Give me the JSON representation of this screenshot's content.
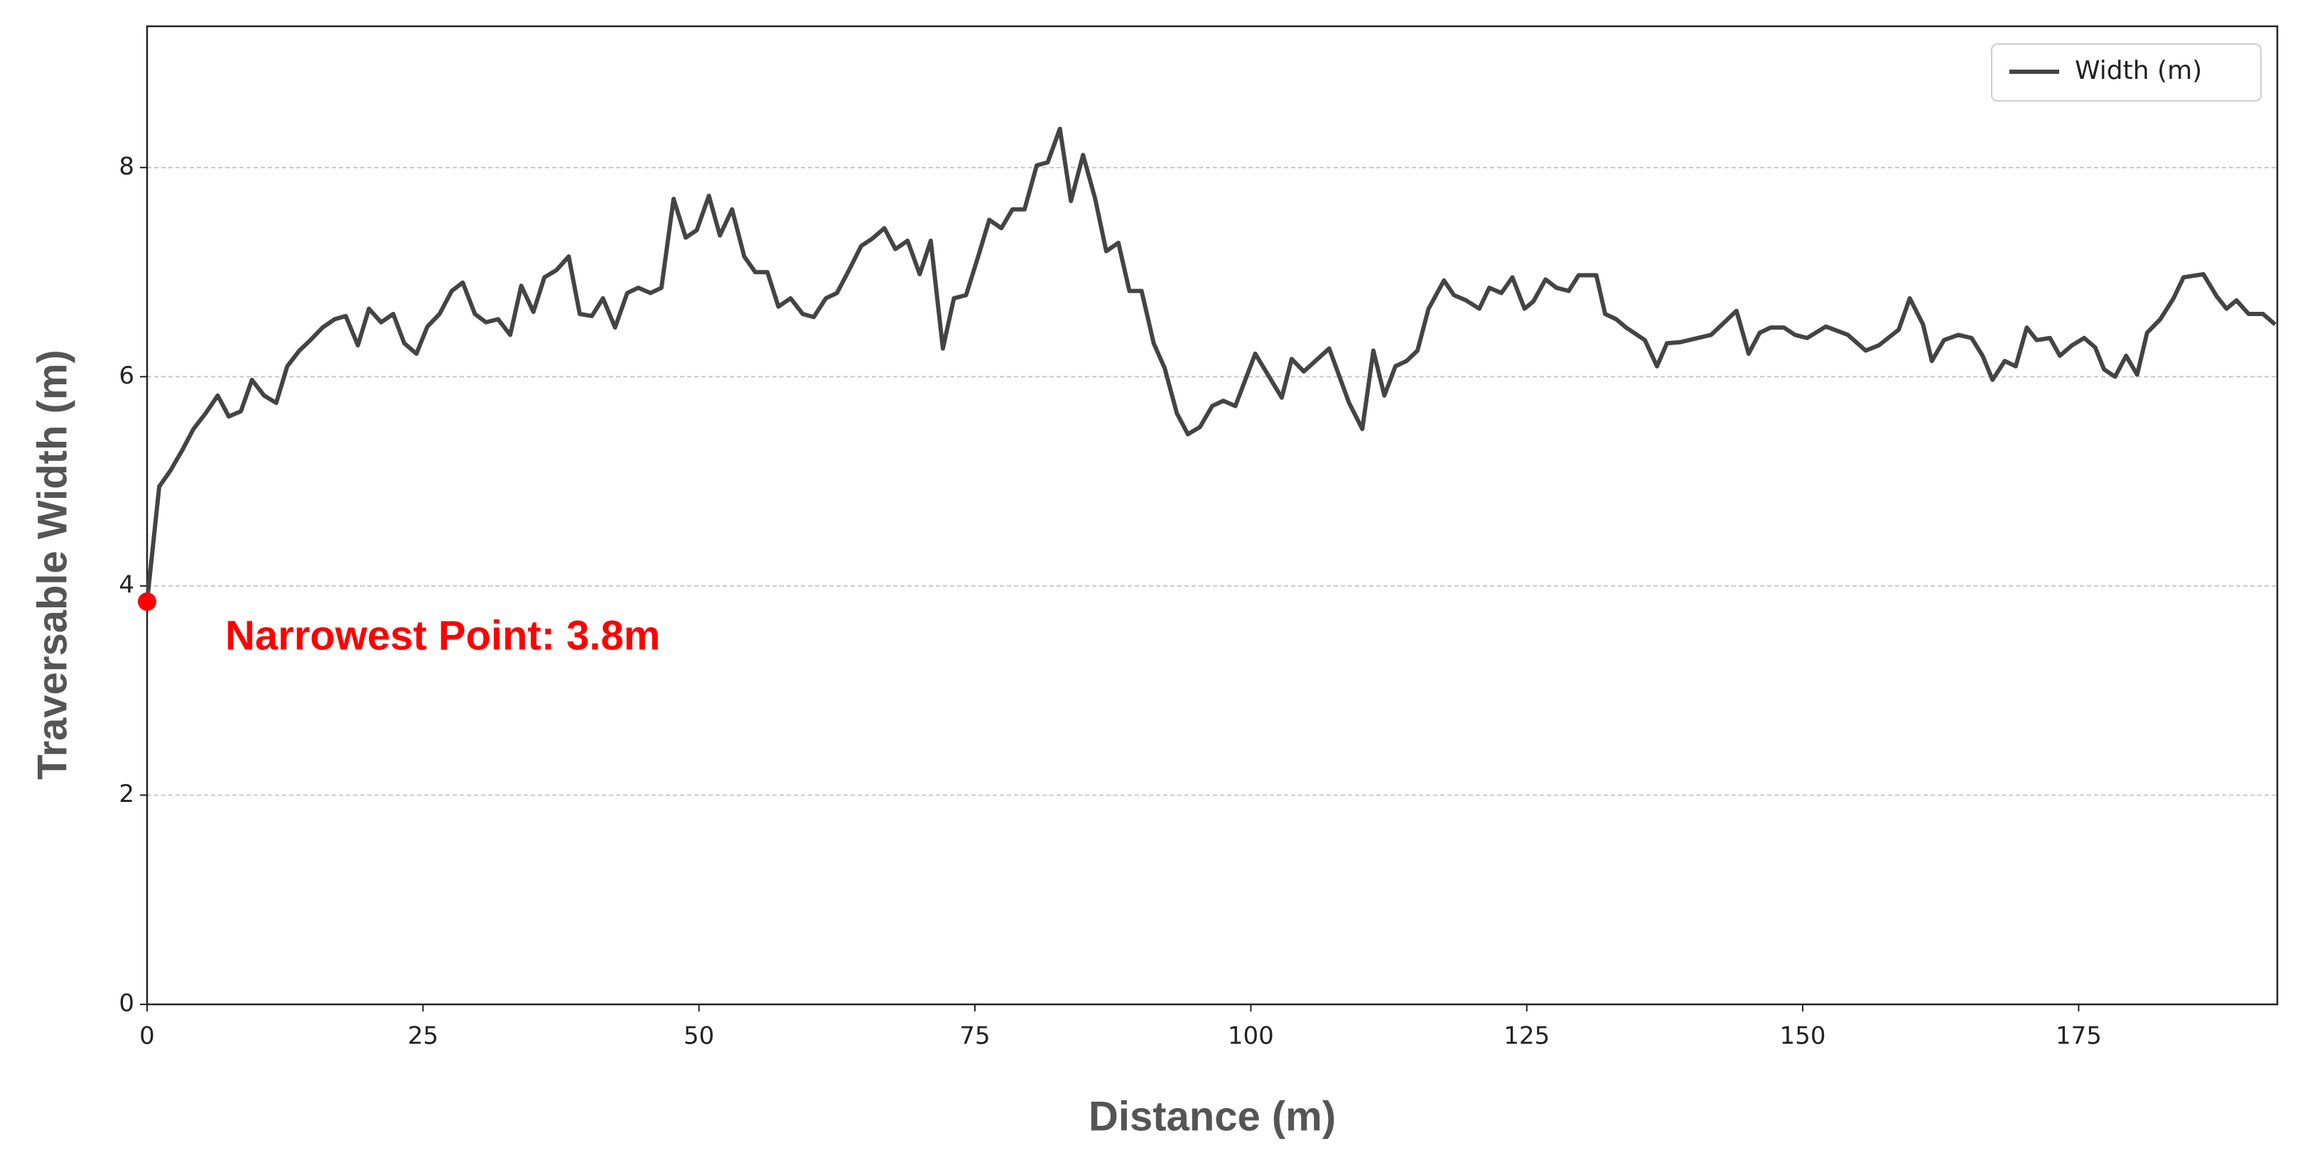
{
  "chart_data": {
    "type": "line",
    "xlabel": "Distance (m)",
    "ylabel": "Traversable Width (m)",
    "xlim": [
      0,
      193
    ],
    "ylim": [
      0,
      9.35
    ],
    "xticks": [
      0,
      25,
      50,
      75,
      100,
      125,
      150,
      175
    ],
    "yticks": [
      0,
      2,
      4,
      6,
      8
    ],
    "grid": true,
    "legend": "upper right",
    "series": [
      {
        "name": "Width (m)",
        "color": "#444444",
        "x": [
          0,
          1.1,
          2.1,
          3.2,
          4.2,
          5.3,
          6.4,
          7.4,
          8.5,
          9.5,
          10.6,
          11.7,
          12.7,
          13.8,
          14.8,
          15.9,
          17.0,
          18.0,
          19.1,
          20.1,
          21.2,
          22.3,
          23.3,
          24.4,
          25.4,
          26.5,
          27.6,
          28.6,
          29.7,
          30.7,
          31.8,
          32.9,
          33.9,
          35.0,
          36.0,
          37.1,
          38.2,
          39.2,
          40.3,
          41.3,
          42.4,
          43.5,
          44.5,
          45.6,
          46.6,
          47.7,
          48.8,
          49.8,
          50.9,
          51.9,
          53.0,
          54.1,
          55.1,
          56.2,
          57.2,
          58.3,
          59.4,
          60.4,
          61.5,
          62.5,
          63.6,
          64.7,
          65.7,
          66.8,
          67.8,
          68.9,
          70.0,
          71.0,
          72.1,
          73.1,
          74.2,
          75.3,
          76.3,
          77.4,
          78.4,
          79.5,
          80.6,
          81.6,
          82.7,
          83.7,
          84.8,
          85.9,
          86.9,
          88.0,
          89.0,
          90.1,
          91.2,
          92.2,
          93.3,
          94.3,
          95.4,
          96.5,
          97.5,
          98.6,
          100.4,
          102.8,
          103.7,
          104.8,
          107.1,
          108.9,
          110.1,
          111.1,
          112.1,
          113.1,
          114.1,
          115.1,
          116.1,
          117.5,
          118.4,
          119.5,
          120.7,
          121.6,
          122.7,
          123.7,
          124.8,
          125.6,
          126.7,
          127.7,
          128.8,
          129.7,
          131.3,
          132.1,
          133.1,
          134.0,
          135.7,
          136.8,
          137.7,
          138.9,
          141.7,
          144.0,
          145.1,
          146.1,
          147.1,
          148.3,
          149.3,
          150.4,
          152.1,
          154.1,
          155.7,
          156.9,
          158.7,
          159.7,
          160.9,
          161.7,
          162.8,
          164.1,
          165.3,
          166.3,
          167.2,
          168.3,
          169.3,
          170.3,
          171.2,
          172.4,
          173.3,
          174.4,
          175.5,
          176.5,
          177.3,
          178.3,
          179.3,
          180.3,
          181.2,
          182.4,
          183.6,
          184.5,
          186.3,
          187.5,
          188.4,
          189.3,
          190.4,
          191.7,
          192.8
        ],
        "values": [
          3.85,
          4.95,
          5.1,
          5.3,
          5.5,
          5.65,
          5.82,
          5.62,
          5.67,
          5.97,
          5.82,
          5.75,
          6.1,
          6.25,
          6.35,
          6.47,
          6.55,
          6.58,
          6.3,
          6.65,
          6.52,
          6.6,
          6.32,
          6.22,
          6.48,
          6.6,
          6.82,
          6.9,
          6.6,
          6.52,
          6.55,
          6.4,
          6.87,
          6.62,
          6.95,
          7.02,
          7.15,
          6.6,
          6.58,
          6.75,
          6.47,
          6.8,
          6.85,
          6.8,
          6.85,
          7.7,
          7.33,
          7.4,
          7.73,
          7.35,
          7.6,
          7.15,
          7.0,
          7.0,
          6.67,
          6.75,
          6.6,
          6.57,
          6.75,
          6.8,
          7.02,
          7.25,
          7.32,
          7.42,
          7.22,
          7.3,
          6.98,
          7.3,
          6.27,
          6.75,
          6.78,
          7.15,
          7.5,
          7.42,
          7.6,
          7.6,
          8.02,
          8.05,
          8.37,
          7.68,
          8.12,
          7.7,
          7.2,
          7.28,
          6.82,
          6.82,
          6.32,
          6.08,
          5.65,
          5.45,
          5.52,
          5.72,
          5.77,
          5.72,
          6.22,
          5.8,
          6.17,
          6.05,
          6.27,
          5.75,
          5.5,
          6.25,
          5.82,
          6.1,
          6.15,
          6.25,
          6.65,
          6.92,
          6.78,
          6.73,
          6.65,
          6.85,
          6.8,
          6.95,
          6.65,
          6.72,
          6.93,
          6.85,
          6.82,
          6.97,
          6.97,
          6.6,
          6.55,
          6.47,
          6.35,
          6.1,
          6.32,
          6.33,
          6.4,
          6.63,
          6.22,
          6.42,
          6.47,
          6.47,
          6.4,
          6.37,
          6.48,
          6.4,
          6.25,
          6.3,
          6.45,
          6.75,
          6.5,
          6.15,
          6.35,
          6.4,
          6.37,
          6.2,
          5.97,
          6.15,
          6.1,
          6.47,
          6.35,
          6.37,
          6.2,
          6.3,
          6.37,
          6.28,
          6.07,
          6.0,
          6.2,
          6.02,
          6.42,
          6.55,
          6.75,
          6.95,
          6.98,
          6.77,
          6.65,
          6.73,
          6.6,
          6.6,
          6.5
        ]
      }
    ],
    "annotation": {
      "text": "Narrowest Point: 3.8m",
      "color": "#ff0000"
    }
  }
}
